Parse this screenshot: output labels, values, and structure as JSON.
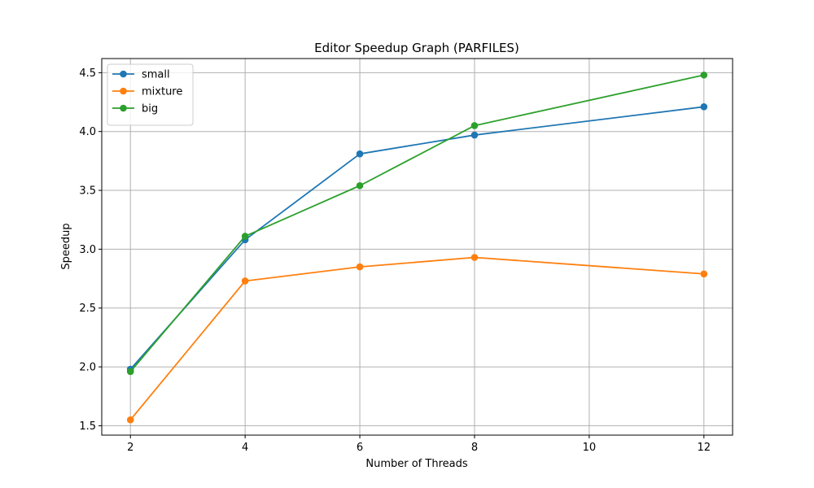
{
  "chart_data": {
    "type": "line",
    "title": "Editor Speedup Graph (PARFILES)",
    "xlabel": "Number of Threads",
    "ylabel": "Speedup",
    "x": [
      2,
      4,
      6,
      8,
      12
    ],
    "xlim": [
      1.5,
      12.5
    ],
    "ylim": [
      1.42,
      4.62
    ],
    "xticks": [
      "2",
      "4",
      "6",
      "8",
      "10",
      "12"
    ],
    "yticks": [
      "1.5",
      "2.0",
      "2.5",
      "3.0",
      "3.5",
      "4.0",
      "4.5"
    ],
    "grid": true,
    "legend_position": "top-left",
    "series": [
      {
        "name": "small",
        "color": "#1f77b4",
        "values": [
          1.98,
          3.08,
          3.81,
          3.97,
          4.21
        ]
      },
      {
        "name": "mixture",
        "color": "#ff7f0e",
        "values": [
          1.55,
          2.73,
          2.85,
          2.93,
          2.79
        ]
      },
      {
        "name": "big",
        "color": "#2ca02c",
        "values": [
          1.96,
          3.11,
          3.54,
          4.05,
          4.48
        ]
      }
    ]
  }
}
